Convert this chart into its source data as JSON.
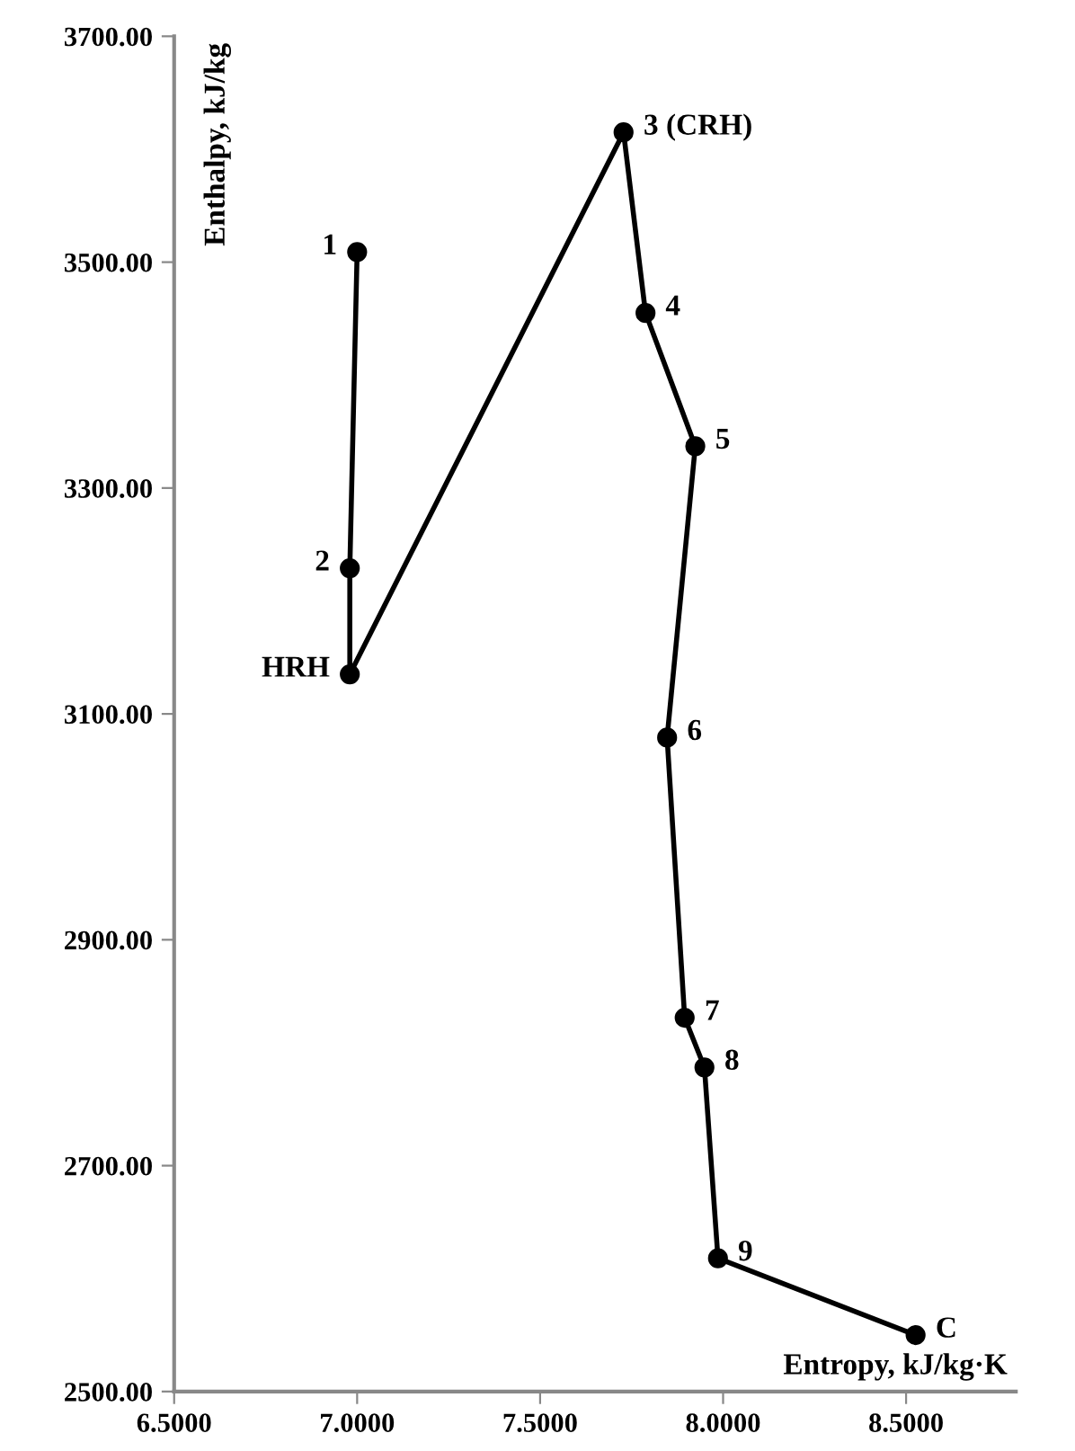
{
  "chart_data": {
    "type": "line",
    "xlabel": "Entropy, kJ/kg·K",
    "ylabel": "Enthalpy, kJ/kg",
    "x": [
      7.0,
      6.98,
      6.98,
      7.728,
      7.788,
      7.924,
      7.847,
      7.895,
      7.949,
      7.986,
      8.526
    ],
    "series": [
      {
        "color": "#000000",
        "values": [
          3509,
          3229,
          3135,
          3615,
          3455,
          3337,
          3079,
          2831,
          2787,
          2618,
          2550
        ]
      }
    ],
    "marker": "circle",
    "line_style": "solid",
    "grid": false,
    "legend": false,
    "xlim": [
      6.5,
      8.8
    ],
    "xticks": [
      {
        "value": 6.5,
        "label": "6.5000"
      },
      {
        "value": 7.0,
        "label": "7.0000"
      },
      {
        "value": 7.5,
        "label": "7.5000"
      },
      {
        "value": 8.0,
        "label": "8.0000"
      },
      {
        "value": 8.5,
        "label": "8.5000"
      }
    ],
    "ylim": [
      2500,
      3700
    ],
    "yticks": [
      {
        "value": 2500,
        "label": "2500.00"
      },
      {
        "value": 2700,
        "label": "2700.00"
      },
      {
        "value": 2900,
        "label": "2900.00"
      },
      {
        "value": 3100,
        "label": "3100.00"
      },
      {
        "value": 3300,
        "label": "3300.00"
      },
      {
        "value": 3500,
        "label": "3500.00"
      },
      {
        "value": 3700,
        "label": "3700.00"
      }
    ],
    "annotations": [
      {
        "text": "1",
        "x": 7.0,
        "y": 3509
      },
      {
        "text": "2",
        "x": 6.98,
        "y": 3229
      },
      {
        "text": "HRH",
        "x": 6.98,
        "y": 3135
      },
      {
        "text": "3 (CRH)",
        "x": 7.728,
        "y": 3615
      },
      {
        "text": "4",
        "x": 7.788,
        "y": 3455
      },
      {
        "text": "5",
        "x": 7.924,
        "y": 3337
      },
      {
        "text": "6",
        "x": 7.847,
        "y": 3079
      },
      {
        "text": "7",
        "x": 7.895,
        "y": 2831
      },
      {
        "text": "8",
        "x": 7.949,
        "y": 2787
      },
      {
        "text": "9",
        "x": 7.986,
        "y": 2618
      },
      {
        "text": "C",
        "x": 8.526,
        "y": 2550
      }
    ]
  }
}
